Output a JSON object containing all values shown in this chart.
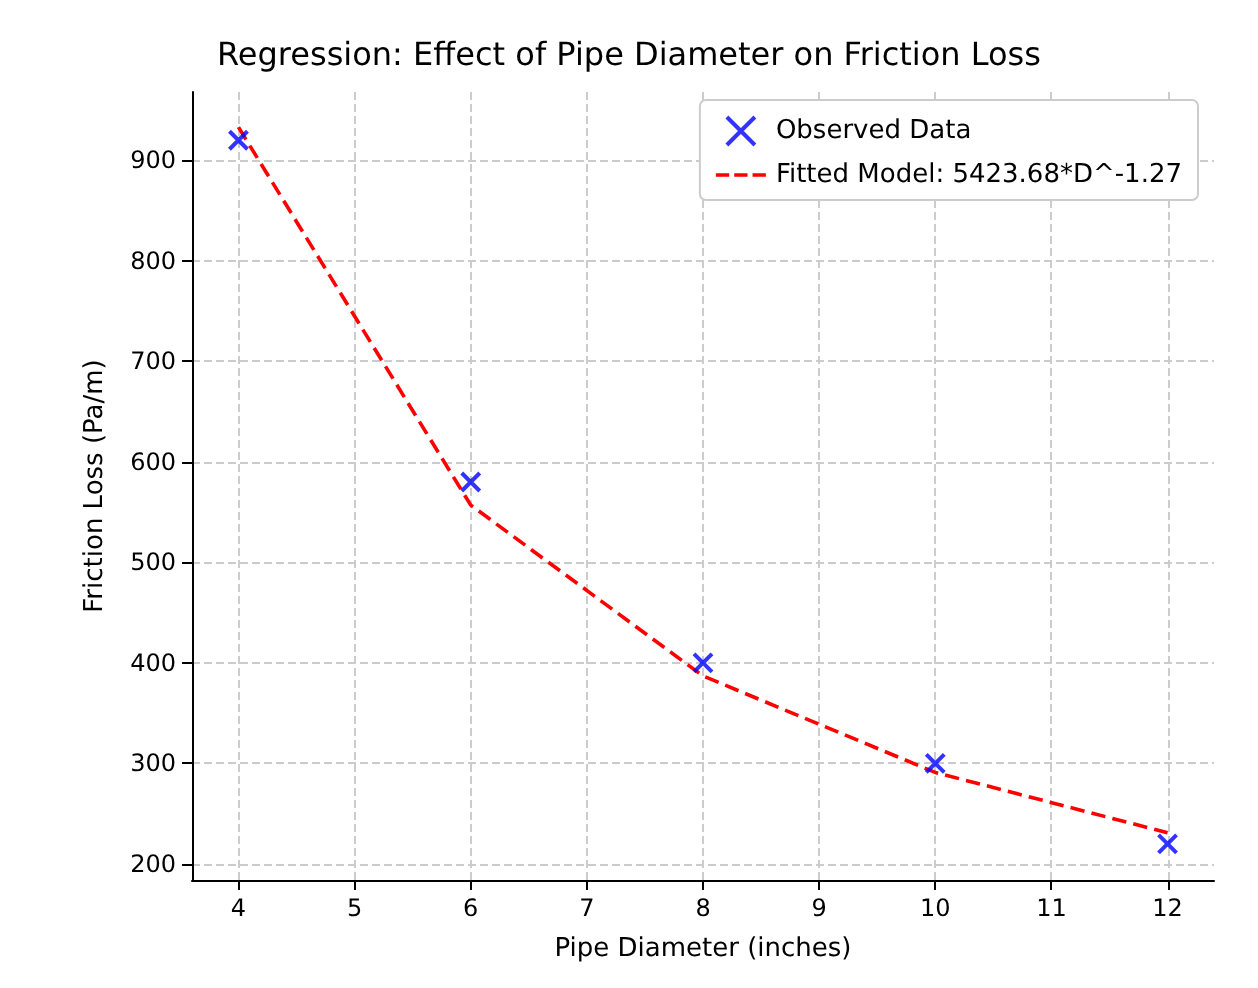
{
  "chart_data": {
    "type": "scatter",
    "title": "Regression: Effect of Pipe Diameter on Friction Loss",
    "xlabel": "Pipe Diameter (inches)",
    "ylabel": "Friction Loss (Pa/m)",
    "series": [
      {
        "name": "Observed Data",
        "color": "#0000ff",
        "marker": "cross",
        "x": [
          4,
          6,
          8,
          10,
          12
        ],
        "values": [
          920,
          580,
          400,
          300,
          220
        ]
      },
      {
        "name": "Fitted Model: 5423.68*D^-1.27",
        "type": "line",
        "color": "#ff0000",
        "line_style": "dashed",
        "marker": "none",
        "x": [
          4,
          6,
          8,
          10,
          12
        ],
        "values": [
          933,
          557,
          387,
          291,
          231
        ]
      }
    ],
    "xlim": [
      3.6,
      12.4
    ],
    "xticks": [
      4,
      5,
      6,
      7,
      8,
      9,
      10,
      11,
      12
    ],
    "ylim": [
      184,
      968
    ],
    "yticks": [
      200,
      300,
      400,
      500,
      600,
      700,
      800,
      900
    ],
    "grid": true,
    "legend": "top right"
  }
}
